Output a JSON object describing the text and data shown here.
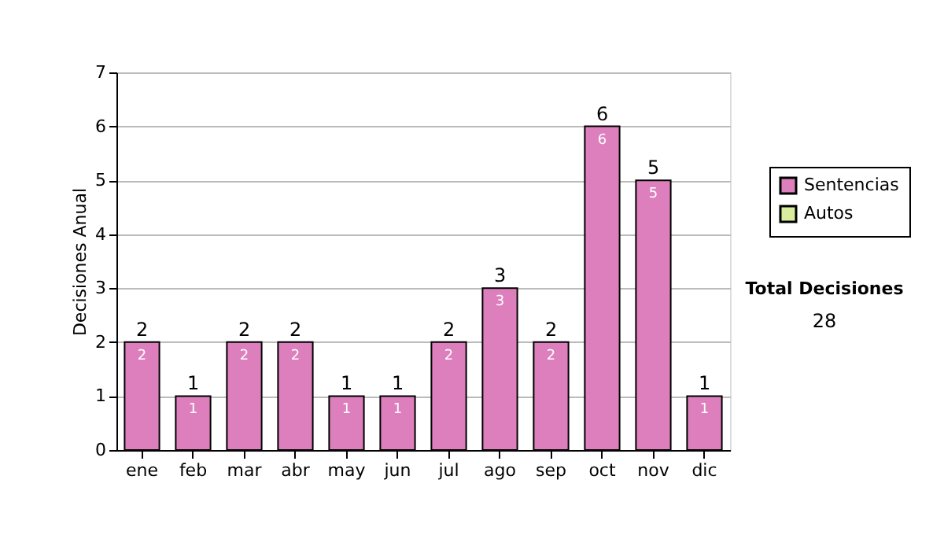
{
  "chart_data": {
    "type": "bar",
    "stacked": true,
    "ylabel": "Decisiones Anual",
    "categories": [
      "ene",
      "feb",
      "mar",
      "abr",
      "may",
      "jun",
      "jul",
      "ago",
      "sep",
      "oct",
      "nov",
      "dic"
    ],
    "series": [
      {
        "name": "Sentencias",
        "color": "#dd7fbd",
        "values": [
          2,
          1,
          2,
          2,
          1,
          1,
          2,
          3,
          2,
          6,
          5,
          1
        ],
        "value_labels": [
          "2",
          "1",
          "2",
          "2",
          "1",
          "1",
          "2",
          "3",
          "2",
          "6",
          "5",
          "1"
        ]
      },
      {
        "name": "Autos",
        "color": "#d9eb9c",
        "values": [
          null,
          null,
          null,
          null,
          null,
          null,
          null,
          null,
          null,
          null,
          null,
          null
        ]
      }
    ],
    "totals": [
      "2",
      "1",
      "2",
      "2",
      "1",
      "1",
      "2",
      "3",
      "2",
      "6",
      "5",
      "1"
    ],
    "ylim": [
      0,
      7
    ],
    "yticks": [
      0,
      1,
      2,
      3,
      4,
      5,
      6,
      7
    ],
    "grid": "y",
    "legend": "right",
    "annotations": [
      "Total Decisiones",
      "28"
    ]
  }
}
